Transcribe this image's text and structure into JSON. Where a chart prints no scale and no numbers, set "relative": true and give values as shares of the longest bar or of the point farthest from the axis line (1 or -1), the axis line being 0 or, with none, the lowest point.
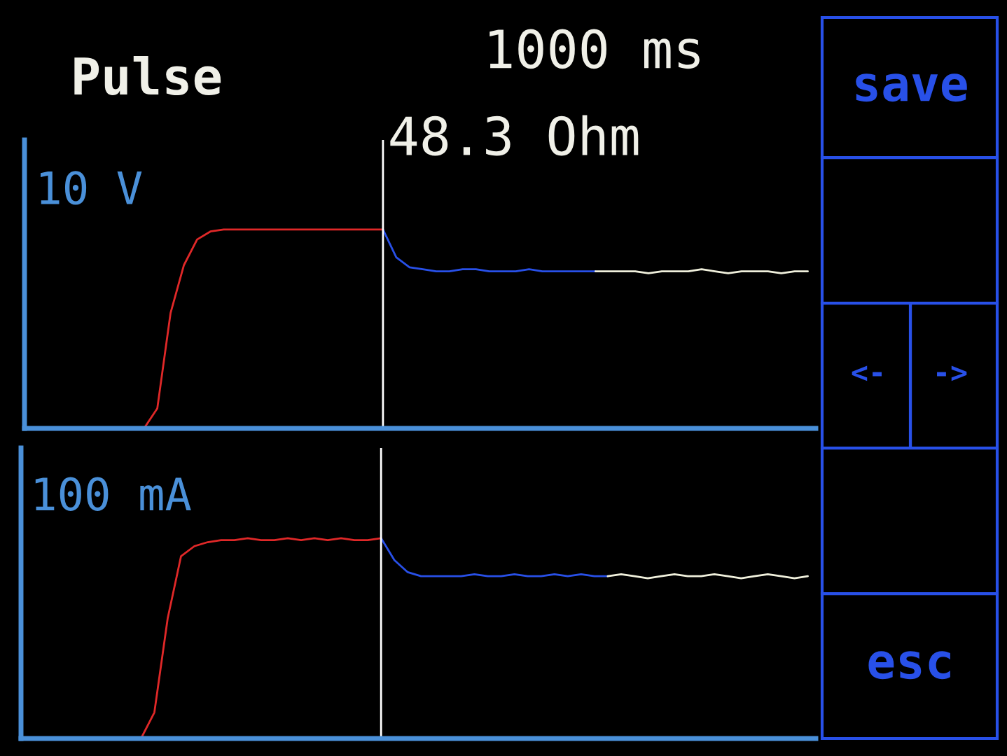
{
  "chart_data": [
    {
      "type": "line",
      "title": "Pulse",
      "relative": true,
      "annotations": [
        "1000 ms",
        "48.3 Ohm",
        "10 V"
      ],
      "categories": [
        null,
        null,
        null,
        null,
        null,
        null,
        null,
        null,
        null,
        null,
        null,
        null,
        null,
        null,
        null,
        null,
        null,
        null,
        null,
        null,
        null,
        null,
        null,
        null,
        null,
        null,
        null,
        null,
        null,
        null,
        null,
        null,
        null,
        null,
        null,
        null,
        null,
        null,
        null,
        null,
        null,
        null,
        null,
        null,
        null,
        null,
        null,
        null,
        null,
        null,
        null,
        null,
        null,
        null,
        null,
        null,
        null,
        null,
        null,
        null
      ],
      "series": [
        {
          "color": "#e02828",
          "values": [
            null,
            null,
            null,
            null,
            null,
            null,
            null,
            null,
            0,
            0,
            0.1,
            0.58,
            0.82,
            0.95,
            0.99,
            1,
            1,
            1,
            1,
            1,
            1,
            1,
            1,
            1,
            1,
            1,
            1,
            1,
            null,
            null,
            null,
            null,
            null,
            null,
            null,
            null,
            null,
            null,
            null,
            null,
            null,
            null,
            null,
            null,
            null,
            null,
            null,
            null,
            null,
            null,
            null,
            null,
            null,
            null,
            null,
            null,
            null,
            null,
            null,
            null
          ]
        },
        {
          "color": "#2850e8",
          "values": [
            null,
            null,
            null,
            null,
            null,
            null,
            null,
            null,
            null,
            null,
            null,
            null,
            null,
            null,
            null,
            null,
            null,
            null,
            null,
            null,
            null,
            null,
            null,
            null,
            null,
            null,
            null,
            1,
            0.86,
            0.81,
            0.8,
            0.79,
            0.79,
            0.8,
            0.8,
            0.79,
            0.79,
            0.79,
            0.8,
            0.79,
            0.79,
            0.79,
            0.79,
            0.79,
            null,
            null,
            null,
            null,
            null,
            null,
            null,
            null,
            null,
            null,
            null,
            null,
            null,
            null,
            null,
            null
          ]
        },
        {
          "color": "#f0f0dc",
          "values": [
            null,
            null,
            null,
            null,
            null,
            null,
            null,
            null,
            null,
            null,
            null,
            null,
            null,
            null,
            null,
            null,
            null,
            null,
            null,
            null,
            null,
            null,
            null,
            null,
            null,
            null,
            null,
            null,
            null,
            null,
            null,
            null,
            null,
            null,
            null,
            null,
            null,
            null,
            null,
            null,
            null,
            null,
            null,
            0.79,
            0.79,
            0.79,
            0.79,
            0.78,
            0.79,
            0.79,
            0.79,
            0.8,
            0.79,
            0.78,
            0.79,
            0.79,
            0.79,
            0.78,
            0.79,
            0.79
          ]
        }
      ]
    },
    {
      "type": "line",
      "relative": true,
      "annotations": [
        "100 mA"
      ],
      "categories": [
        null,
        null,
        null,
        null,
        null,
        null,
        null,
        null,
        null,
        null,
        null,
        null,
        null,
        null,
        null,
        null,
        null,
        null,
        null,
        null,
        null,
        null,
        null,
        null,
        null,
        null,
        null,
        null,
        null,
        null,
        null,
        null,
        null,
        null,
        null,
        null,
        null,
        null,
        null,
        null,
        null,
        null,
        null,
        null,
        null,
        null,
        null,
        null,
        null,
        null,
        null,
        null,
        null,
        null,
        null,
        null,
        null,
        null,
        null,
        null
      ],
      "series": [
        {
          "color": "#e02828",
          "values": [
            null,
            null,
            null,
            null,
            null,
            null,
            null,
            null,
            0,
            0,
            0.13,
            0.6,
            0.91,
            0.96,
            0.98,
            0.99,
            0.99,
            1,
            0.99,
            0.99,
            1,
            0.99,
            1,
            0.99,
            1,
            0.99,
            0.99,
            1,
            null,
            null,
            null,
            null,
            null,
            null,
            null,
            null,
            null,
            null,
            null,
            null,
            null,
            null,
            null,
            null,
            null,
            null,
            null,
            null,
            null,
            null,
            null,
            null,
            null,
            null,
            null,
            null,
            null,
            null,
            null,
            null
          ]
        },
        {
          "color": "#2850e8",
          "values": [
            null,
            null,
            null,
            null,
            null,
            null,
            null,
            null,
            null,
            null,
            null,
            null,
            null,
            null,
            null,
            null,
            null,
            null,
            null,
            null,
            null,
            null,
            null,
            null,
            null,
            null,
            null,
            1,
            0.89,
            0.83,
            0.81,
            0.81,
            0.81,
            0.81,
            0.82,
            0.81,
            0.81,
            0.82,
            0.81,
            0.81,
            0.82,
            0.81,
            0.82,
            0.81,
            0.81,
            null,
            null,
            null,
            null,
            null,
            null,
            null,
            null,
            null,
            null,
            null,
            null,
            null,
            null,
            null
          ]
        },
        {
          "color": "#f0f0dc",
          "values": [
            null,
            null,
            null,
            null,
            null,
            null,
            null,
            null,
            null,
            null,
            null,
            null,
            null,
            null,
            null,
            null,
            null,
            null,
            null,
            null,
            null,
            null,
            null,
            null,
            null,
            null,
            null,
            null,
            null,
            null,
            null,
            null,
            null,
            null,
            null,
            null,
            null,
            null,
            null,
            null,
            null,
            null,
            null,
            null,
            0.81,
            0.82,
            0.81,
            0.8,
            0.81,
            0.82,
            0.81,
            0.81,
            0.82,
            0.81,
            0.8,
            0.81,
            0.82,
            0.81,
            0.8,
            0.81
          ]
        }
      ]
    },
    {
      "type": "other",
      "annotations": [
        "save",
        "<-",
        "->",
        "esc"
      ]
    }
  ]
}
